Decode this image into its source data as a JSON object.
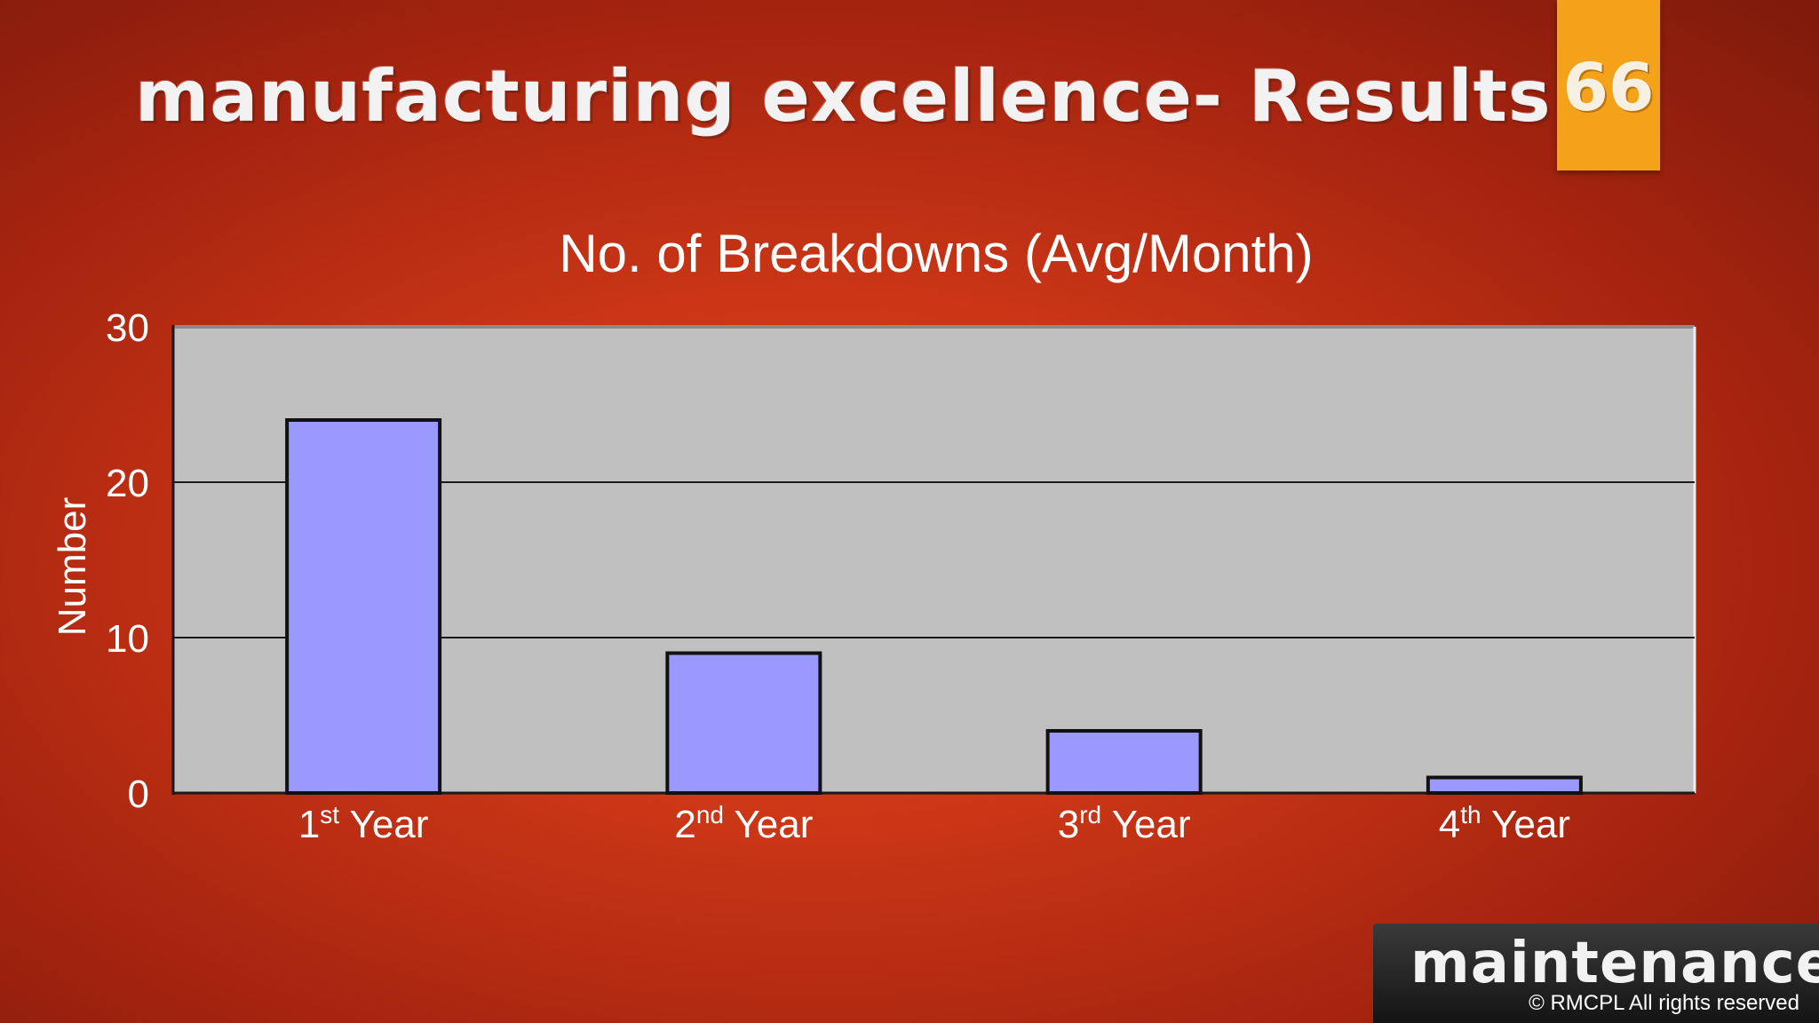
{
  "slide": {
    "title": "manufacturing excellence- Results",
    "page_number": "66"
  },
  "footer": {
    "word": "maintenance",
    "copyright": "© RMCPL All rights reserved"
  },
  "colors": {
    "bar_fill": "#9999ff",
    "plot_background": "#c0c0c0",
    "page_badge": "#f3a21a"
  },
  "chart_data": {
    "type": "bar",
    "title": "No. of Breakdowns (Avg/Month)",
    "ylabel": "Number",
    "xlabel": "",
    "categories": [
      {
        "num": "1",
        "sup": "st",
        "rest": " Year"
      },
      {
        "num": "2",
        "sup": "nd",
        "rest": " Year"
      },
      {
        "num": "3",
        "sup": "rd",
        "rest": " Year"
      },
      {
        "num": "4",
        "sup": "th",
        "rest": " Year"
      }
    ],
    "values": [
      24,
      9,
      4,
      1
    ],
    "ylim": [
      0,
      30
    ],
    "yticks": [
      0,
      10,
      20,
      30
    ],
    "grid": true,
    "legend": "none"
  }
}
